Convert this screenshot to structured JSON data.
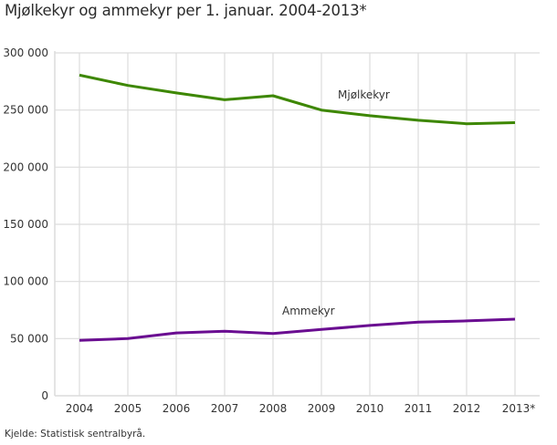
{
  "title": "Mjølkekyr og ammekyr per 1. januar. 2004-2013*",
  "source": "Kjelde: Statistisk sentralbyrå.",
  "colors": {
    "mjolkekyr": "#3d8700",
    "ammekyr": "#6a0d91",
    "grid": "#dcdcdc"
  },
  "chart_data": {
    "type": "line",
    "title": "Mjølkekyr og ammekyr per 1. januar. 2004-2013*",
    "xlabel": "",
    "ylabel": "",
    "categories": [
      "2004",
      "2005",
      "2006",
      "2007",
      "2008",
      "2009",
      "2010",
      "2011",
      "2012",
      "2013*"
    ],
    "series": [
      {
        "name": "Mjølkekyr",
        "values": [
          280500,
          271500,
          265000,
          259000,
          262500,
          250000,
          245000,
          241000,
          238000,
          239000
        ]
      },
      {
        "name": "Ammekyr",
        "values": [
          48500,
          50000,
          55000,
          56500,
          54500,
          58000,
          61500,
          64500,
          65500,
          67000
        ]
      }
    ],
    "yticks": [
      "0",
      "50 000",
      "100 000",
      "150 000",
      "200 000",
      "250 000",
      "300 000"
    ],
    "ylim": [
      0,
      300000
    ],
    "grid": true,
    "legend": "inline labels"
  }
}
